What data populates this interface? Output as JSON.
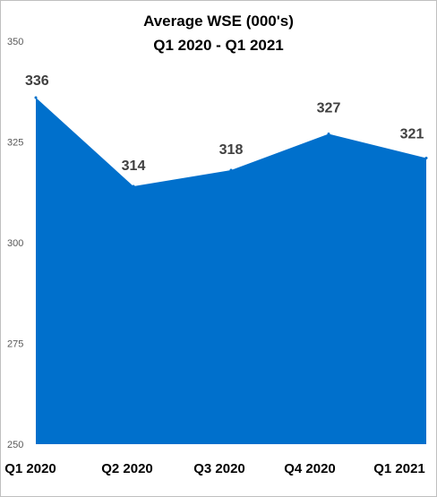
{
  "chart_data": {
    "type": "area",
    "title": "Average WSE (000's)",
    "subtitle": "Q1 2020 - Q1 2021",
    "categories": [
      "Q1 2020",
      "Q2 2020",
      "Q3 2020",
      "Q4 2020",
      "Q1 2021"
    ],
    "series": [
      {
        "values": [
          336,
          314,
          318,
          327,
          321
        ]
      }
    ],
    "data_labels": [
      "336",
      "314",
      "318",
      "327",
      "321"
    ],
    "yticks": [
      250,
      275,
      300,
      325,
      350
    ],
    "ylim": [
      250,
      350
    ],
    "grid": false,
    "legend": "none",
    "colors": {
      "area": "#0070cc"
    }
  }
}
